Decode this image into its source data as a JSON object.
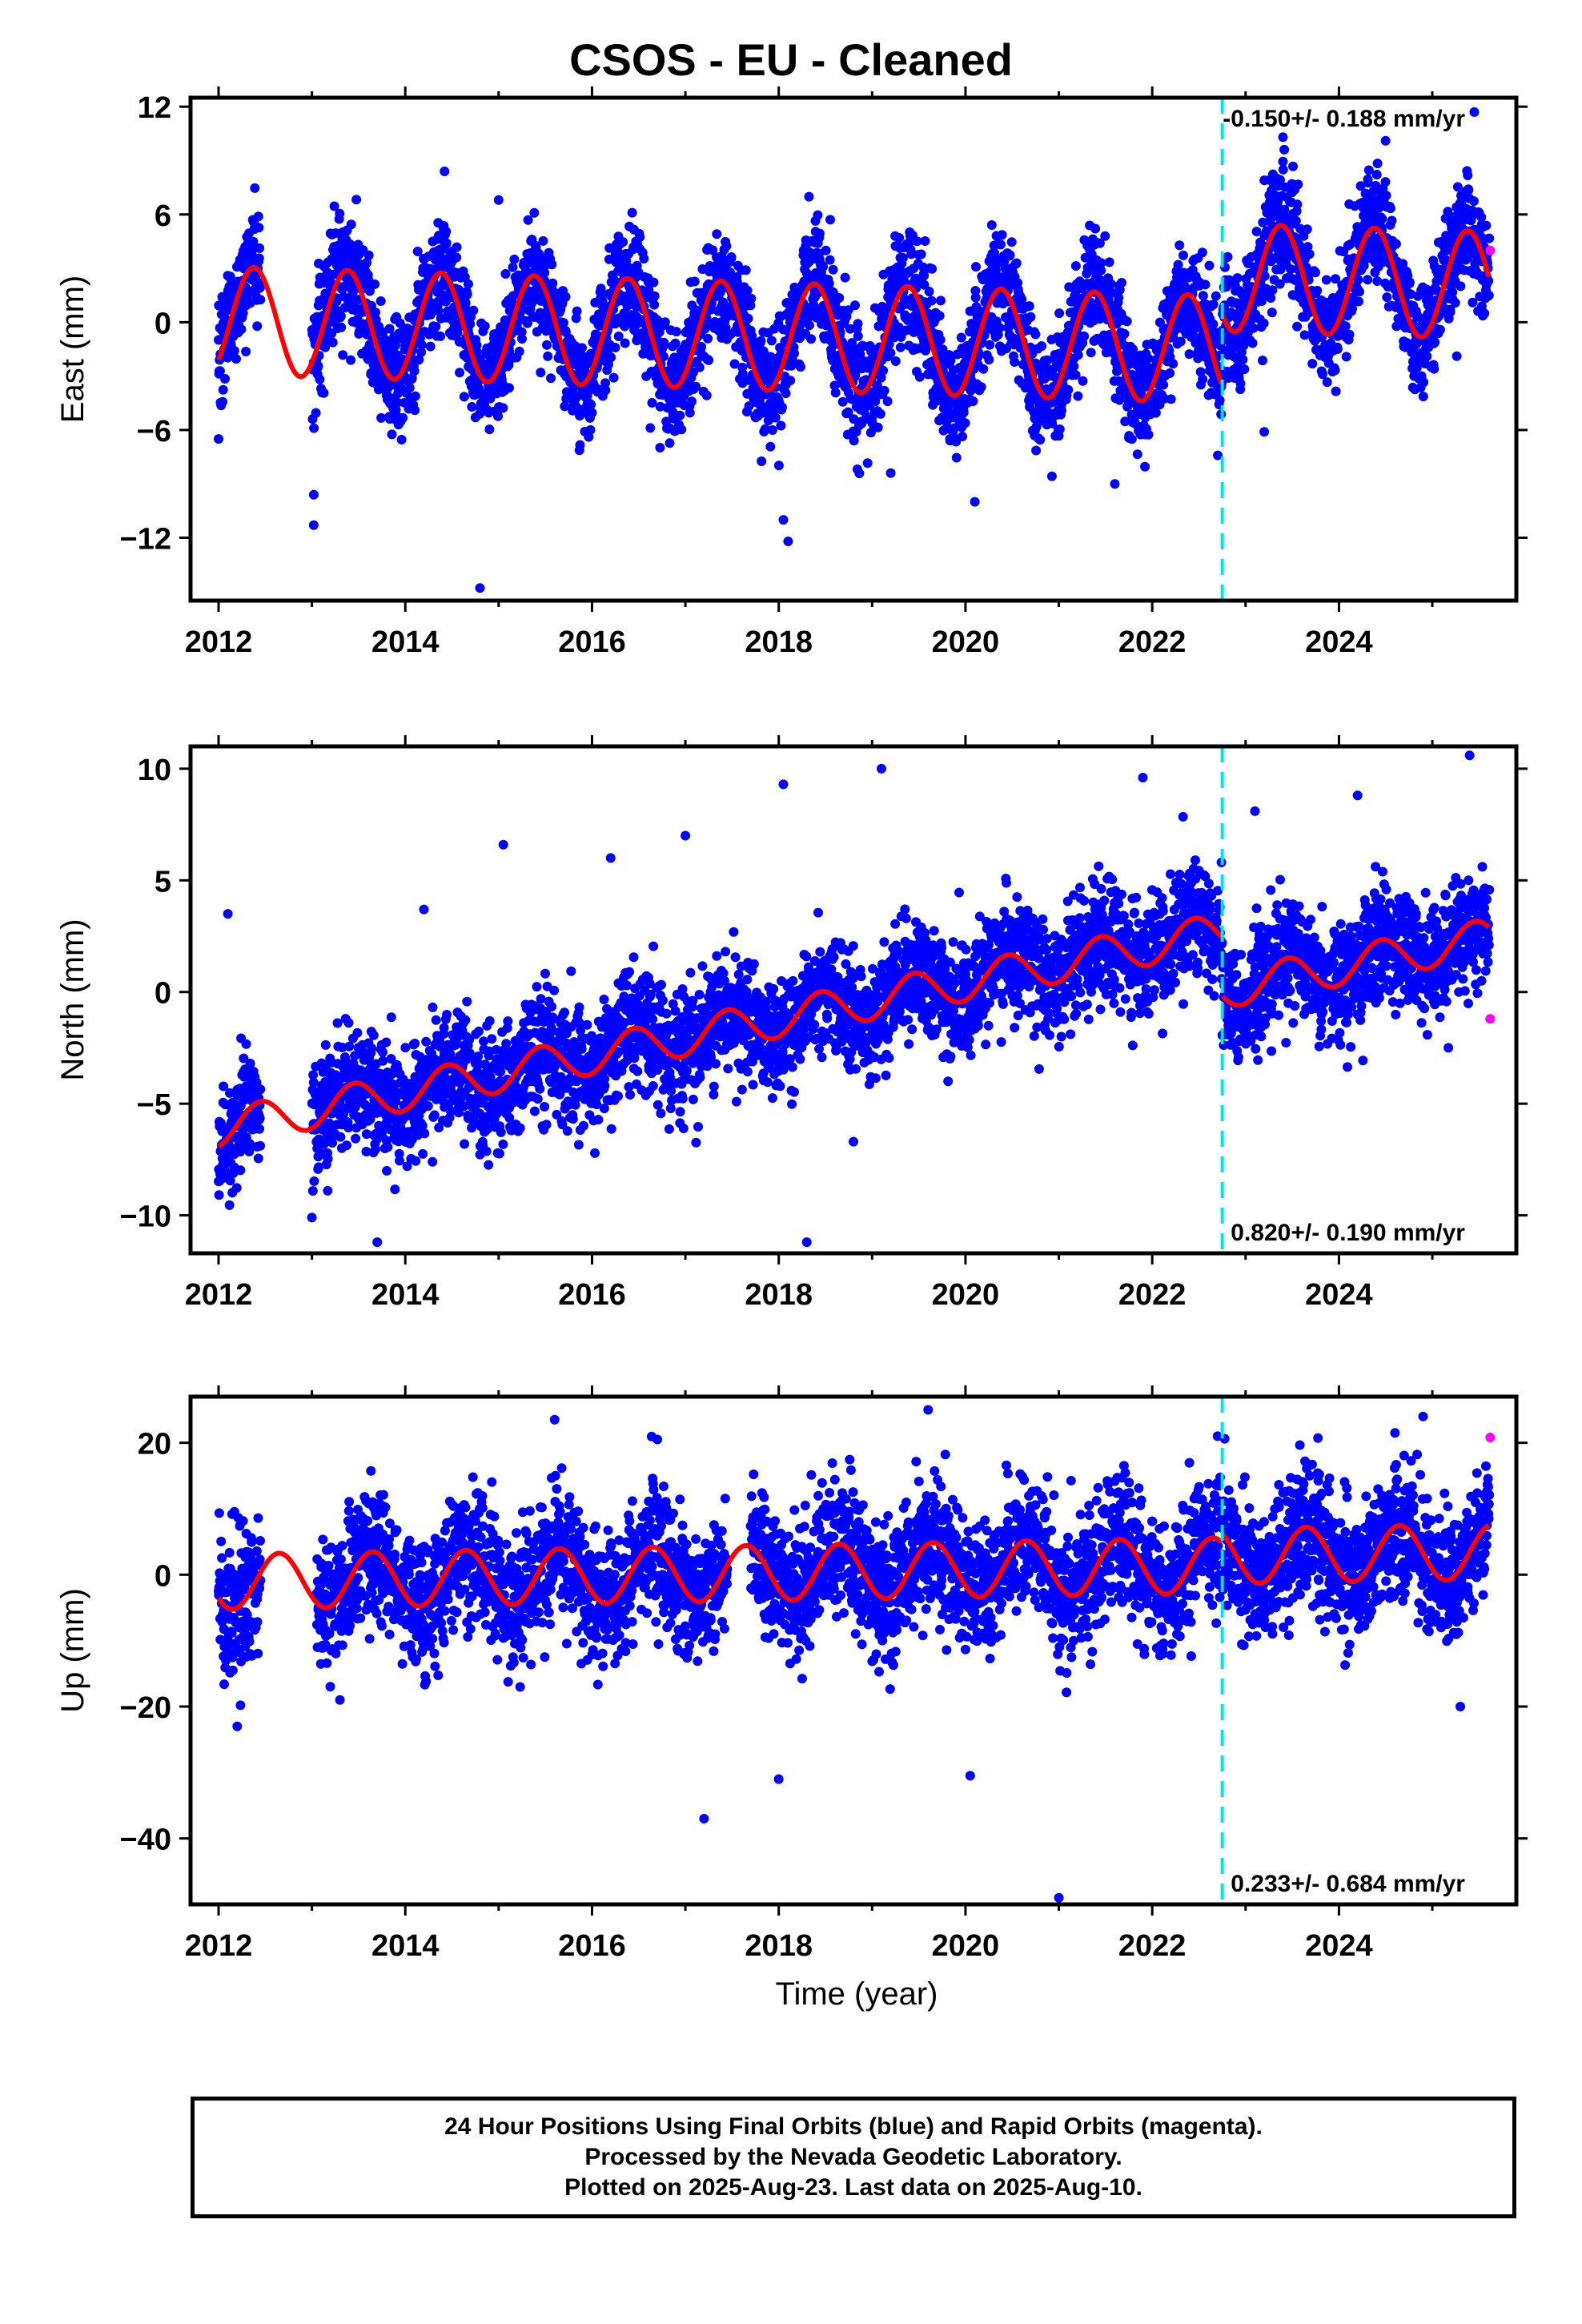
{
  "title": "CSOS  - EU - Cleaned",
  "xlabel": "Time (year)",
  "footer": {
    "line1": "24 Hour Positions Using Final Orbits (blue) and Rapid Orbits (magenta).",
    "line2": "Processed by the Nevada Geodetic Laboratory.",
    "line3": "Plotted on 2025-Aug-23. Last data on 2025-Aug-10."
  },
  "colors": {
    "final_orbits": "#0000ff",
    "rapid_orbits": "#ff00ff",
    "model_fit": "#ff0000",
    "step_marker": "#00e5e5"
  },
  "chart_data": [
    {
      "type": "scatter",
      "panel": "east",
      "ylabel": "East (mm)",
      "xlim": [
        2011.7,
        2025.9
      ],
      "ylim": [
        -15.5,
        12.5
      ],
      "yticks": [
        -12,
        -6,
        0,
        6,
        12
      ],
      "xticks": [
        2012,
        2014,
        2016,
        2018,
        2020,
        2022,
        2024
      ],
      "xticklabels": [
        "2012",
        "2014",
        "2016",
        "2018",
        "2020",
        "2022",
        "2024"
      ],
      "grid": false,
      "rate_label": "-0.150+/- 0.188 mm/yr",
      "rate_label_position": "top-right",
      "step_year": 2022.75,
      "data_span": [
        2012.0,
        2025.61
      ],
      "gaps": [
        [
          2012.45,
          2013.0
        ]
      ],
      "model": {
        "offset_before": -0.8,
        "offset_after": 3.2,
        "rate": -0.15,
        "annual_amplitude": 3.0,
        "annual_phase_peak": 0.38,
        "ref_year": 2018.0
      },
      "scatter_sd": 1.6,
      "outliers": [
        [
          2013.02,
          -11.3
        ],
        [
          2013.02,
          -9.6
        ],
        [
          2014.8,
          -14.8
        ],
        [
          2014.42,
          8.4
        ],
        [
          2018.1,
          -12.2
        ],
        [
          2018.05,
          -11.0
        ],
        [
          2025.45,
          11.7
        ],
        [
          2015.0,
          6.8
        ],
        [
          2023.4,
          10.3
        ],
        [
          2024.5,
          10.1
        ],
        [
          2012.0,
          -6.5
        ],
        [
          2019.2,
          -8.4
        ],
        [
          2020.1,
          -10.0
        ],
        [
          2021.6,
          -9.0
        ],
        [
          2023.2,
          -6.1
        ]
      ],
      "rapid_points": [
        [
          2025.62,
          4.0
        ]
      ]
    },
    {
      "type": "scatter",
      "panel": "north",
      "ylabel": "North (mm)",
      "xlim": [
        2011.7,
        2025.9
      ],
      "ylim": [
        -11.7,
        11.0
      ],
      "yticks": [
        -10,
        -5,
        0,
        5,
        10
      ],
      "xticks": [
        2012,
        2014,
        2016,
        2018,
        2020,
        2022,
        2024
      ],
      "xticklabels": [
        "2012",
        "2014",
        "2016",
        "2018",
        "2020",
        "2022",
        "2024"
      ],
      "grid": false,
      "rate_label": "0.820+/- 0.190 mm/yr",
      "rate_label_position": "bottom-right",
      "step_year": 2022.75,
      "data_span": [
        2012.0,
        2025.61
      ],
      "gaps": [
        [
          2012.45,
          2013.0
        ]
      ],
      "model": {
        "offset_before": -1.2,
        "offset_after": -3.8,
        "rate": 0.82,
        "annual_amplitude": 0.85,
        "annual_phase_peak": 0.45,
        "ref_year": 2018.0
      },
      "scatter_sd": 1.3,
      "outliers": [
        [
          2012.1,
          3.5
        ],
        [
          2018.05,
          9.3
        ],
        [
          2019.1,
          10.0
        ],
        [
          2021.9,
          9.6
        ],
        [
          2025.4,
          10.6
        ],
        [
          2017.0,
          7.0
        ],
        [
          2015.05,
          6.6
        ],
        [
          2016.2,
          6.0
        ],
        [
          2013.7,
          -11.2
        ],
        [
          2018.3,
          -11.2
        ],
        [
          2013.0,
          -10.1
        ],
        [
          2014.2,
          3.7
        ],
        [
          2023.1,
          8.1
        ],
        [
          2024.2,
          8.8
        ],
        [
          2018.8,
          -6.7
        ]
      ],
      "rapid_points": [
        [
          2025.62,
          -1.2
        ]
      ]
    },
    {
      "type": "scatter",
      "panel": "up",
      "ylabel": "Up (mm)",
      "xlim": [
        2011.7,
        2025.9
      ],
      "ylim": [
        -50.0,
        27.0
      ],
      "yticks": [
        -40,
        -20,
        0,
        20
      ],
      "xticks": [
        2012,
        2014,
        2016,
        2018,
        2020,
        2022,
        2024
      ],
      "xticklabels": [
        "2012",
        "2014",
        "2016",
        "2018",
        "2020",
        "2022",
        "2024"
      ],
      "grid": false,
      "rate_label": "0.233+/- 0.684 mm/yr",
      "rate_label_position": "bottom-right",
      "step_year": 2022.75,
      "data_span": [
        2012.0,
        2025.61
      ],
      "gaps": [
        [
          2012.45,
          2013.05
        ],
        [
          2017.45,
          2017.7
        ]
      ],
      "model": {
        "offset_before": 0.3,
        "offset_after": 1.7,
        "rate": 0.233,
        "annual_amplitude": 4.2,
        "annual_phase_peak": 0.65,
        "ref_year": 2018.0
      },
      "scatter_sd": 5.0,
      "outliers": [
        [
          2019.6,
          25.0
        ],
        [
          2015.6,
          23.5
        ],
        [
          2017.2,
          -37.0
        ],
        [
          2021.0,
          -49.0
        ],
        [
          2018.0,
          -31.0
        ],
        [
          2020.05,
          -30.5
        ],
        [
          2012.2,
          -23.0
        ],
        [
          2025.3,
          -20.0
        ],
        [
          2022.7,
          21.0
        ],
        [
          2024.6,
          21.5
        ],
        [
          2016.7,
          20.5
        ],
        [
          2013.3,
          -19.0
        ]
      ],
      "rapid_points": [
        [
          2025.62,
          20.8
        ]
      ]
    }
  ]
}
